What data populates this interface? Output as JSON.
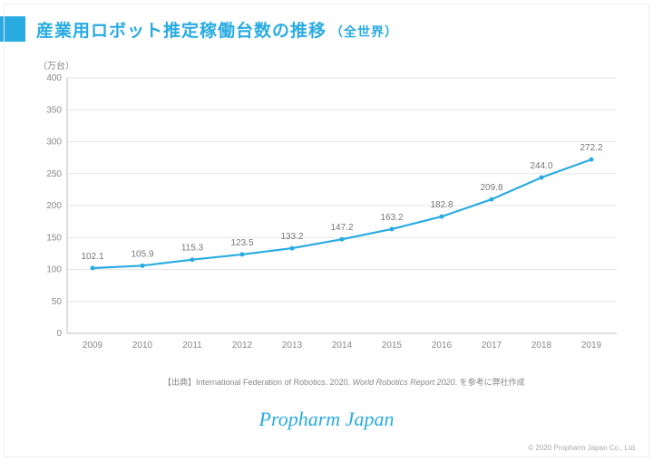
{
  "title": {
    "main": "産業用ロボット推定稼働台数の推移",
    "sub": "（全世界）",
    "color": "#29abe2"
  },
  "chart": {
    "type": "line",
    "y_unit_label": "（万台）",
    "categories": [
      "2009",
      "2010",
      "2011",
      "2012",
      "2013",
      "2014",
      "2015",
      "2016",
      "2017",
      "2018",
      "2019"
    ],
    "values": [
      102.1,
      105.9,
      115.3,
      123.5,
      133.2,
      147.2,
      163.2,
      182.8,
      209.8,
      244.0,
      272.2
    ],
    "value_labels": [
      "102.1",
      "105.9",
      "115.3",
      "123.5",
      "133.2",
      "147.2",
      "163.2",
      "182.8",
      "209.8",
      "244.0",
      "272.2"
    ],
    "ylim": [
      0,
      400
    ],
    "ytick_step": 50,
    "yticks": [
      "0",
      "50",
      "100",
      "150",
      "200",
      "250",
      "300",
      "350",
      "400"
    ],
    "line_color": "#29abe2",
    "line_width": 2.2,
    "marker_radius": 2.5,
    "grid_color": "#e6e6e6",
    "axis_color": "#bdbdbd",
    "label_color": "#888",
    "value_label_color": "#777",
    "background": "#ffffff",
    "label_fontsize": 10
  },
  "source": {
    "prefix": "【出典】International Federation of Robotics. 2020. ",
    "italic": "World Robotics Report 2020",
    "suffix": ". を参考に弊社作成"
  },
  "brand": "Propharm Japan",
  "copyright": "© 2020 Propharm Japan Co., Ltd."
}
